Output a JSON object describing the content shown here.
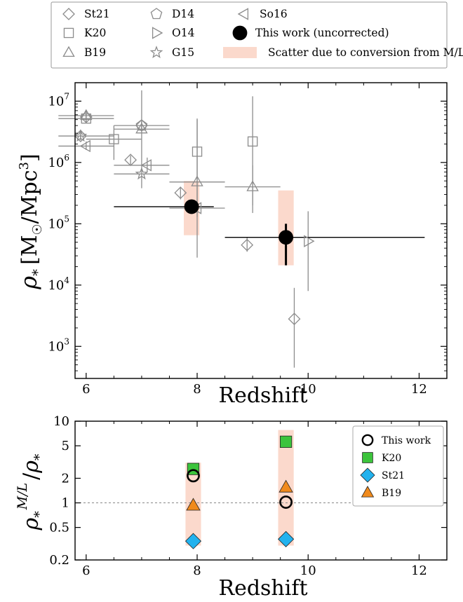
{
  "chart_data": [
    {
      "type": "scatter",
      "xlabel": "Redshift",
      "ylabel": "ρ* [M☉/Mpc³]",
      "ylabel_parts": {
        "rho": "ρ",
        "sub": "*",
        "bracket_open": "[M",
        "sun": "☉",
        "unit": "/Mpc",
        "sup": "3",
        "bracket_close": "]"
      },
      "xlim": [
        5.8,
        12.5
      ],
      "ylim": [
        300,
        20000000
      ],
      "yscale": "log",
      "xticks": [
        6,
        8,
        10,
        12
      ],
      "xtick_labels": [
        "6",
        "8",
        "10",
        "12"
      ],
      "yticks": [
        1000,
        10000,
        100000,
        1000000,
        10000000
      ],
      "ytick_labels": [
        {
          "base": "10",
          "exp": "3"
        },
        {
          "base": "10",
          "exp": "4"
        },
        {
          "base": "10",
          "exp": "5"
        },
        {
          "base": "10",
          "exp": "6"
        },
        {
          "base": "10",
          "exp": "7"
        }
      ],
      "legend": {
        "placement": "top (outside plot)",
        "entries": [
          {
            "label": "St21",
            "marker": "diamond"
          },
          {
            "label": "K20",
            "marker": "square"
          },
          {
            "label": "B19",
            "marker": "triangle-up"
          },
          {
            "label": "D14",
            "marker": "pentagon"
          },
          {
            "label": "O14",
            "marker": "triangle-right"
          },
          {
            "label": "G15",
            "marker": "star"
          },
          {
            "label": "So16",
            "marker": "triangle-left"
          },
          {
            "label": "This work (uncorrected)",
            "marker": "filled-circle"
          },
          {
            "label": "Scatter due to conversion from M/L",
            "marker": "band"
          }
        ]
      },
      "colors": {
        "literature": "#8c8c8c",
        "this_work": "#000000",
        "scatter_band": "#fbd9cc"
      },
      "series": [
        {
          "name": "St21",
          "marker": "diamond",
          "points": [
            {
              "x": 5.9,
              "y": 2700000,
              "xerr": [
                0,
                0
              ],
              "yerr": [
                2300000,
                3400000
              ]
            },
            {
              "x": 6.0,
              "y": 5500000,
              "xerr": [
                0,
                0
              ],
              "yerr": [
                4600000,
                6400000
              ]
            },
            {
              "x": 6.8,
              "y": 1100000,
              "xerr": [
                0,
                0
              ],
              "yerr": [
                900000,
                1300000
              ]
            },
            {
              "x": 7.0,
              "y": 4000000,
              "xerr": [
                0,
                0
              ],
              "yerr": [
                3300000,
                4700000
              ]
            },
            {
              "x": 7.7,
              "y": 320000,
              "xerr": [
                0,
                0
              ],
              "yerr": [
                250000,
                400000
              ]
            },
            {
              "x": 8.9,
              "y": 45000,
              "xerr": [
                0,
                0
              ],
              "yerr": [
                35000,
                60000
              ]
            },
            {
              "x": 9.75,
              "y": 2800,
              "xerr": [
                0,
                0
              ],
              "yerr": [
                450,
                9000
              ]
            }
          ]
        },
        {
          "name": "K20",
          "marker": "square",
          "points": [
            {
              "x": 6.0,
              "y": 5200000,
              "xerr": [
                5.5,
                6.5
              ],
              "yerr": [
                4500000,
                6000000
              ]
            },
            {
              "x": 6.5,
              "y": 2400000,
              "xerr": [
                6.0,
                7.0
              ],
              "yerr": [
                1100000,
                4000000
              ]
            },
            {
              "x": 8.0,
              "y": 1500000,
              "xerr": [
                0,
                0
              ],
              "yerr": [
                130000,
                5200000
              ]
            },
            {
              "x": 9.0,
              "y": 2200000,
              "xerr": [
                0,
                0
              ],
              "yerr": [
                200000,
                12000000
              ]
            }
          ]
        },
        {
          "name": "B19",
          "marker": "triangle-up",
          "points": [
            {
              "x": 6.0,
              "y": 5800000,
              "xerr": [
                5.5,
                6.5
              ],
              "yerr": [
                4700000,
                7000000
              ]
            },
            {
              "x": 7.0,
              "y": 3500000,
              "xerr": [
                6.5,
                7.5
              ],
              "yerr": [
                1000000,
                15000000
              ]
            },
            {
              "x": 8.0,
              "y": 480000,
              "xerr": [
                7.5,
                8.5
              ],
              "yerr": [
                28000,
                5000000
              ]
            },
            {
              "x": 9.0,
              "y": 400000,
              "xerr": [
                8.5,
                9.5
              ],
              "yerr": [
                150000,
                900000
              ]
            }
          ]
        },
        {
          "name": "D14",
          "marker": "pentagon",
          "points": [
            {
              "x": 7.0,
              "y": 4000000,
              "xerr": [
                6.5,
                7.5
              ],
              "yerr": [
                3500000,
                4600000
              ]
            }
          ]
        },
        {
          "name": "O14",
          "marker": "triangle-right",
          "points": [
            {
              "x": 10.0,
              "y": 52000,
              "xerr": [
                0,
                0
              ],
              "yerr": [
                8000,
                160000
              ]
            }
          ]
        },
        {
          "name": "G15",
          "marker": "star",
          "points": [
            {
              "x": 5.9,
              "y": 2700000,
              "xerr": [
                5.5,
                6.5
              ],
              "yerr": [
                2400000,
                3000000
              ]
            },
            {
              "x": 7.0,
              "y": 650000,
              "xerr": [
                6.5,
                7.5
              ],
              "yerr": [
                380000,
                1000000
              ]
            }
          ]
        },
        {
          "name": "So16",
          "marker": "triangle-left",
          "points": [
            {
              "x": 6.0,
              "y": 1850000,
              "xerr": [
                5.5,
                6.5
              ],
              "yerr": [
                1600000,
                2200000
              ]
            },
            {
              "x": 7.1,
              "y": 900000,
              "xerr": [
                6.5,
                7.5
              ],
              "yerr": [
                700000,
                1200000
              ]
            },
            {
              "x": 8.0,
              "y": 180000,
              "xerr": [
                7.5,
                8.5
              ],
              "yerr": [
                160000,
                200000
              ]
            }
          ]
        },
        {
          "name": "This work (uncorrected)",
          "marker": "filled-circle",
          "points": [
            {
              "x": 7.9,
              "y": 190000,
              "xerr": [
                6.5,
                8.3
              ],
              "yerr": [
                145000,
                245000
              ]
            },
            {
              "x": 9.6,
              "y": 60000,
              "xerr": [
                8.5,
                12.1
              ],
              "yerr": [
                21000,
                100000
              ]
            }
          ]
        }
      ],
      "scatter_bands": [
        {
          "x": 7.9,
          "half_width": 0.14,
          "y_range": [
            65000,
            500000
          ]
        },
        {
          "x": 9.6,
          "half_width": 0.14,
          "y_range": [
            21000,
            350000
          ]
        }
      ]
    },
    {
      "type": "scatter",
      "xlabel": "Redshift",
      "ylabel": "ρ*^(M/L) / ρ*",
      "ylabel_parts": {
        "rho": "ρ",
        "sub": "*",
        "sup": "M/L",
        "sep": "/",
        "rho2": "ρ",
        "sub2": "*"
      },
      "xlim": [
        5.8,
        12.5
      ],
      "ylim": [
        0.2,
        10
      ],
      "yscale": "log",
      "xticks": [
        6,
        8,
        10,
        12
      ],
      "xtick_labels": [
        "6",
        "8",
        "10",
        "12"
      ],
      "yticks": [
        0.2,
        0.5,
        1,
        2,
        5,
        10
      ],
      "ytick_labels": [
        "0.2",
        "0.5",
        "1",
        "2",
        "5",
        "10"
      ],
      "reference_line": {
        "y": 1,
        "style": "dashed",
        "color": "#888888"
      },
      "legend": {
        "placement": "top-right",
        "entries": [
          {
            "label": "This work",
            "marker": "open-circle",
            "color": "#000000"
          },
          {
            "label": "K20",
            "marker": "square",
            "color": "#3cc43c"
          },
          {
            "label": "St21",
            "marker": "diamond",
            "color": "#22b2ee"
          },
          {
            "label": "B19",
            "marker": "triangle-up",
            "color": "#f08a1c"
          }
        ]
      },
      "series": [
        {
          "name": "This work",
          "marker": "open-circle",
          "color": "#000000",
          "x": [
            7.93,
            9.6
          ],
          "y": [
            2.15,
            1.02
          ]
        },
        {
          "name": "K20",
          "marker": "square",
          "color": "#3cc43c",
          "x": [
            7.93,
            9.6
          ],
          "y": [
            2.6,
            5.6
          ]
        },
        {
          "name": "St21",
          "marker": "diamond",
          "color": "#22b2ee",
          "x": [
            7.93,
            9.6
          ],
          "y": [
            0.34,
            0.36
          ]
        },
        {
          "name": "B19",
          "marker": "triangle-up",
          "color": "#f08a1c",
          "x": [
            7.93,
            9.6
          ],
          "y": [
            0.93,
            1.55
          ]
        }
      ],
      "scatter_bands": [
        {
          "x": 7.93,
          "half_width": 0.14,
          "y_range": [
            0.3,
            3.1
          ]
        },
        {
          "x": 9.6,
          "half_width": 0.14,
          "y_range": [
            0.3,
            7.8
          ]
        }
      ]
    }
  ]
}
